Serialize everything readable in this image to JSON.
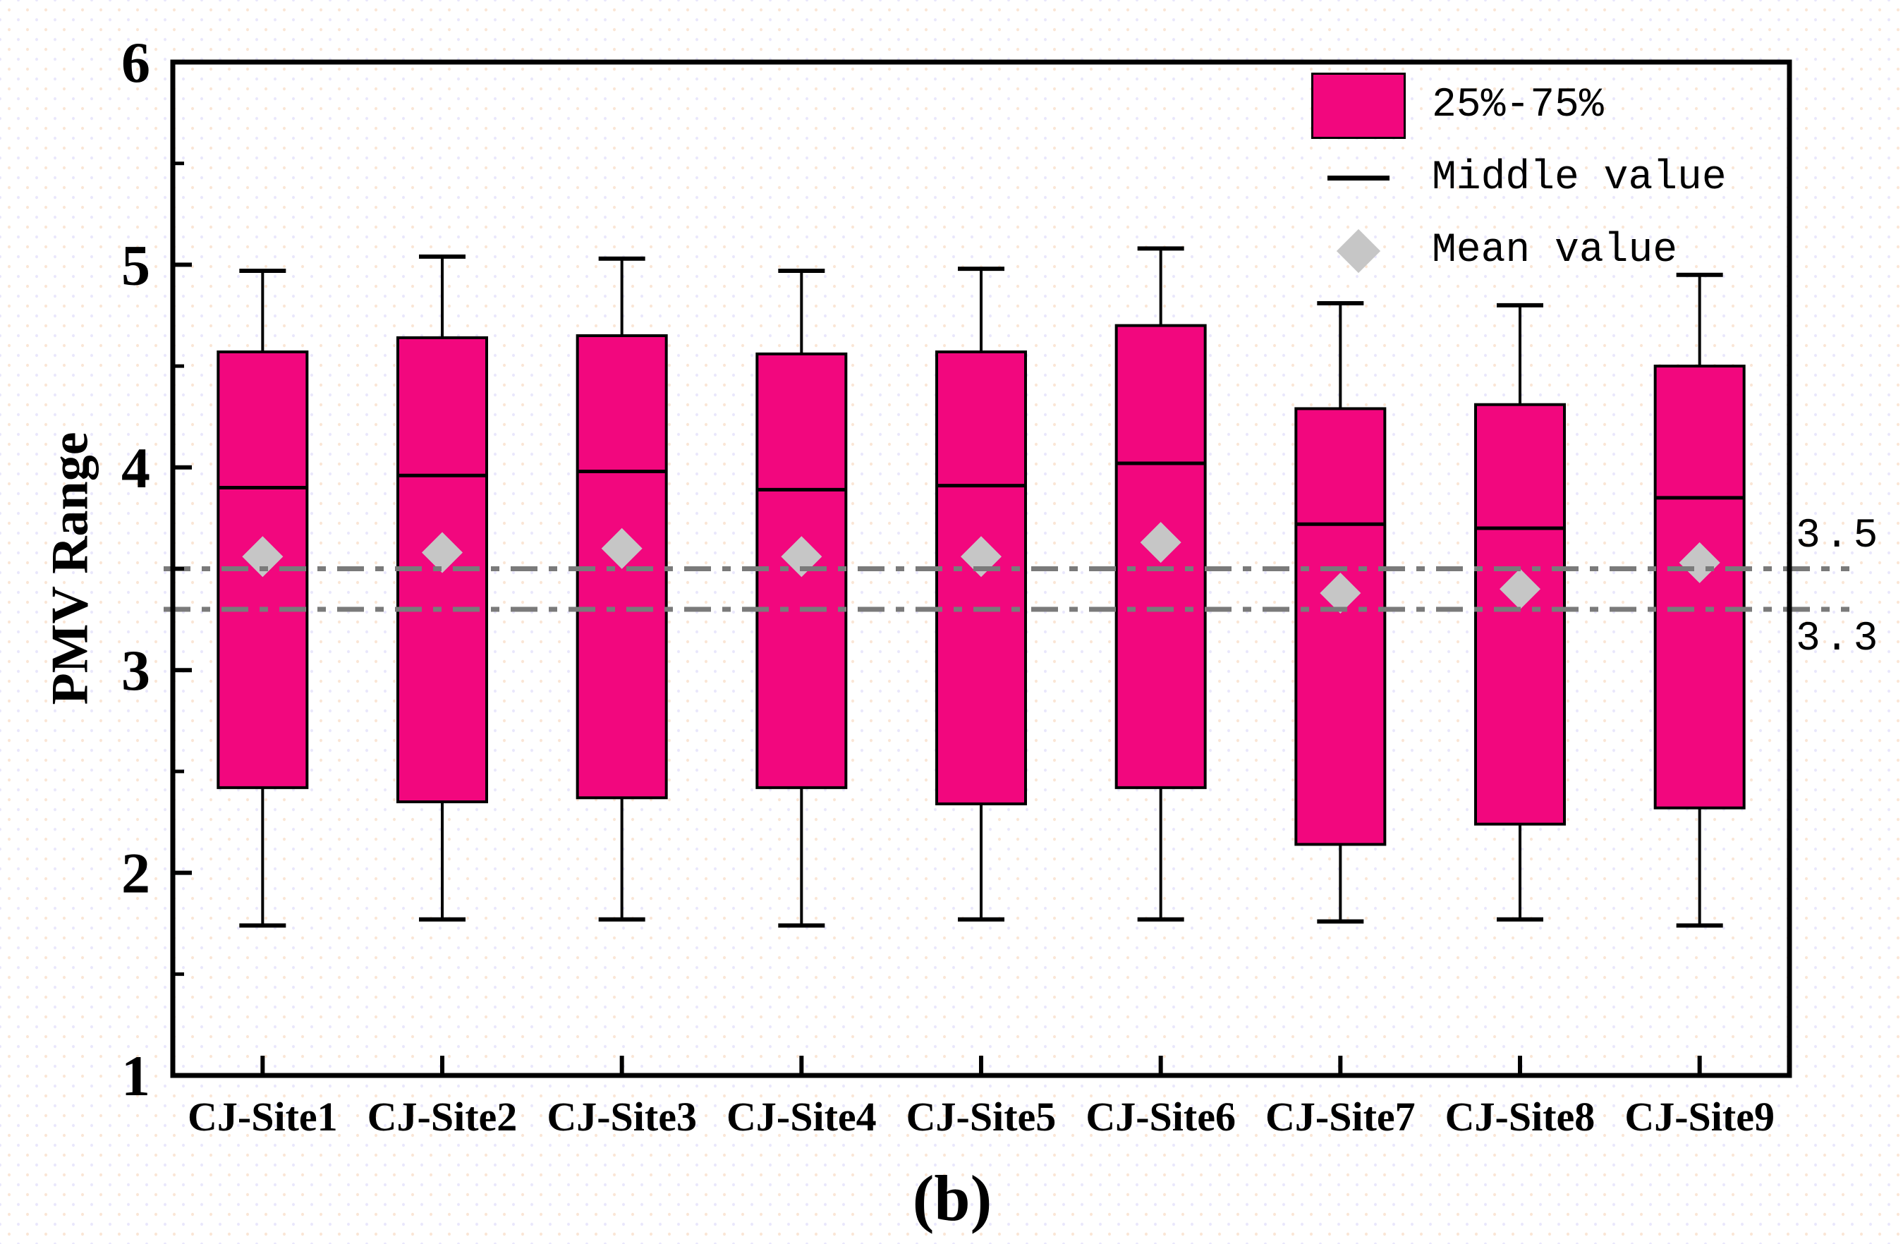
{
  "figure": {
    "caption": "(b)"
  },
  "chart_data": {
    "type": "box",
    "title": "",
    "xlabel": "",
    "ylabel": "PMV Range",
    "ylim": [
      1,
      6
    ],
    "yticks_major": [
      1,
      2,
      3,
      4,
      5,
      6
    ],
    "yticks_minor": [
      1.5,
      2.5,
      3.5,
      4.5,
      5.5
    ],
    "grid": "off",
    "legend_position": "top-right-inside",
    "categories": [
      "CJ-Site1",
      "CJ-Site2",
      "CJ-Site3",
      "CJ-Site4",
      "CJ-Site5",
      "CJ-Site6",
      "CJ-Site7",
      "CJ-Site8",
      "CJ-Site9"
    ],
    "series": [
      {
        "name": "CJ-Site1",
        "whisker_low": 1.74,
        "q1": 2.42,
        "median": 3.9,
        "mean": 3.56,
        "q3": 4.57,
        "whisker_high": 4.97
      },
      {
        "name": "CJ-Site2",
        "whisker_low": 1.77,
        "q1": 2.35,
        "median": 3.96,
        "mean": 3.58,
        "q3": 4.64,
        "whisker_high": 5.04
      },
      {
        "name": "CJ-Site3",
        "whisker_low": 1.77,
        "q1": 2.37,
        "median": 3.98,
        "mean": 3.6,
        "q3": 4.65,
        "whisker_high": 5.03
      },
      {
        "name": "CJ-Site4",
        "whisker_low": 1.74,
        "q1": 2.42,
        "median": 3.89,
        "mean": 3.56,
        "q3": 4.56,
        "whisker_high": 4.97
      },
      {
        "name": "CJ-Site5",
        "whisker_low": 1.77,
        "q1": 2.34,
        "median": 3.91,
        "mean": 3.56,
        "q3": 4.57,
        "whisker_high": 4.98
      },
      {
        "name": "CJ-Site6",
        "whisker_low": 1.77,
        "q1": 2.42,
        "median": 4.02,
        "mean": 3.63,
        "q3": 4.7,
        "whisker_high": 5.08
      },
      {
        "name": "CJ-Site7",
        "whisker_low": 1.76,
        "q1": 2.14,
        "median": 3.72,
        "mean": 3.38,
        "q3": 4.29,
        "whisker_high": 4.81
      },
      {
        "name": "CJ-Site8",
        "whisker_low": 1.77,
        "q1": 2.24,
        "median": 3.7,
        "mean": 3.4,
        "q3": 4.31,
        "whisker_high": 4.8
      },
      {
        "name": "CJ-Site9",
        "whisker_low": 1.74,
        "q1": 2.32,
        "median": 3.85,
        "mean": 3.53,
        "q3": 4.5,
        "whisker_high": 4.95
      }
    ],
    "ref_lines": [
      {
        "value": 3.5,
        "label": "3.5"
      },
      {
        "value": 3.3,
        "label": "3.3"
      }
    ],
    "legend": [
      {
        "marker": "box",
        "label": "25%-75%"
      },
      {
        "marker": "line",
        "label": "Middle value"
      },
      {
        "marker": "diamond",
        "label": "Mean value"
      }
    ],
    "colors": {
      "box_fill": "#F2077E",
      "box_edge": "#000000",
      "median_line": "#000000",
      "mean_marker": "#C6C6C6",
      "whisker": "#000000",
      "ref_line": "#7A7A7A",
      "axis": "#000000"
    }
  }
}
